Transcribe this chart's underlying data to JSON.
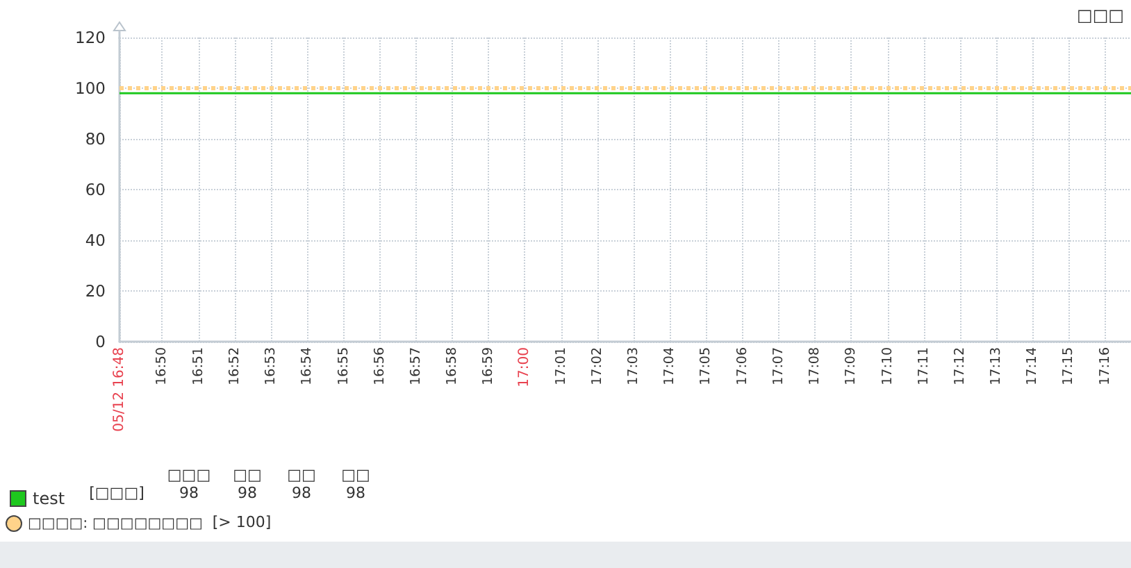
{
  "chart_data": {
    "type": "line",
    "title": "□□□",
    "x": [
      16.8137,
      17.2786
    ],
    "series": [
      {
        "name": "test",
        "color": "#1ec81e",
        "values": [
          98,
          98
        ]
      }
    ],
    "xlim": [
      16.8137,
      17.2786
    ],
    "xticks": [
      {
        "value": 16.8137,
        "label": "05/12 16:48"
      },
      {
        "value": 16.8333,
        "label": "16:50"
      },
      {
        "value": 16.85,
        "label": "16:51"
      },
      {
        "value": 16.8667,
        "label": "16:52"
      },
      {
        "value": 16.8833,
        "label": "16:53"
      },
      {
        "value": 16.9,
        "label": "16:54"
      },
      {
        "value": 16.9167,
        "label": "16:55"
      },
      {
        "value": 16.9333,
        "label": "16:56"
      },
      {
        "value": 16.95,
        "label": "16:57"
      },
      {
        "value": 16.9667,
        "label": "16:58"
      },
      {
        "value": 16.9833,
        "label": "16:59"
      },
      {
        "value": 17,
        "label": "17:00"
      },
      {
        "value": 17.0167,
        "label": "17:01"
      },
      {
        "value": 17.0333,
        "label": "17:02"
      },
      {
        "value": 17.05,
        "label": "17:03"
      },
      {
        "value": 17.0667,
        "label": "17:04"
      },
      {
        "value": 17.0833,
        "label": "17:05"
      },
      {
        "value": 17.1,
        "label": "17:06"
      },
      {
        "value": 17.1167,
        "label": "17:07"
      },
      {
        "value": 17.1333,
        "label": "17:08"
      },
      {
        "value": 17.15,
        "label": "17:09"
      },
      {
        "value": 17.1667,
        "label": "17:10"
      },
      {
        "value": 17.1833,
        "label": "17:11"
      },
      {
        "value": 17.2,
        "label": "17:12"
      },
      {
        "value": 17.2167,
        "label": "17:13"
      },
      {
        "value": 17.2333,
        "label": "17:14"
      },
      {
        "value": 17.25,
        "label": "17:15"
      },
      {
        "value": 17.2667,
        "label": "17:16"
      }
    ],
    "ylim": [
      0,
      120
    ],
    "yticks": [
      0,
      20,
      40,
      60,
      80,
      100,
      120
    ],
    "grid": true,
    "legend": "bottom left",
    "ref_lines": [
      {
        "axis": "y",
        "value": 100,
        "label": "□□□□: □□□□□□□□",
        "color": "#ffd38a",
        "line_style": "dotted"
      }
    ],
    "annotations": [
      "[□□□]",
      "□□□",
      "□□",
      "□□",
      "□□",
      "98",
      "98",
      "98",
      "98",
      "[> 100]"
    ]
  }
}
